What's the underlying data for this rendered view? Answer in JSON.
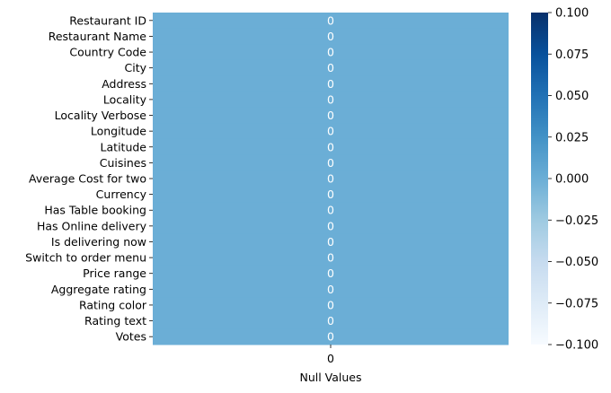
{
  "chart_data": {
    "type": "heatmap",
    "title": "",
    "xlabel": "Null Values",
    "ylabel": "",
    "x_categories": [
      "0"
    ],
    "y_categories": [
      "Restaurant ID",
      "Restaurant Name",
      "Country Code",
      "City",
      "Address",
      "Locality",
      "Locality Verbose",
      "Longitude",
      "Latitude",
      "Cuisines",
      "Average Cost for two",
      "Currency",
      "Has Table booking",
      "Has Online delivery",
      "Is delivering now",
      "Switch to order menu",
      "Price range",
      "Aggregate rating",
      "Rating color",
      "Rating text",
      "Votes"
    ],
    "values": [
      [
        0
      ],
      [
        0
      ],
      [
        0
      ],
      [
        0
      ],
      [
        0
      ],
      [
        0
      ],
      [
        0
      ],
      [
        0
      ],
      [
        0
      ],
      [
        0
      ],
      [
        0
      ],
      [
        0
      ],
      [
        0
      ],
      [
        0
      ],
      [
        0
      ],
      [
        0
      ],
      [
        0
      ],
      [
        0
      ],
      [
        0
      ],
      [
        0
      ],
      [
        0
      ]
    ],
    "annotations": true,
    "colormap": "Blues",
    "cell_color": "#6baed6",
    "vmin": -0.1,
    "vmax": 0.1,
    "colorbar": {
      "ticks": [
        "0.100",
        "0.075",
        "0.050",
        "0.025",
        "0.000",
        "−0.025",
        "−0.050",
        "−0.075",
        "−0.100"
      ],
      "colors_top_to_bottom": [
        "#08306b",
        "#08519c",
        "#2171b5",
        "#4292c6",
        "#6baed6",
        "#9ecae1",
        "#c6dbef",
        "#deebf7",
        "#f7fbff"
      ]
    }
  }
}
